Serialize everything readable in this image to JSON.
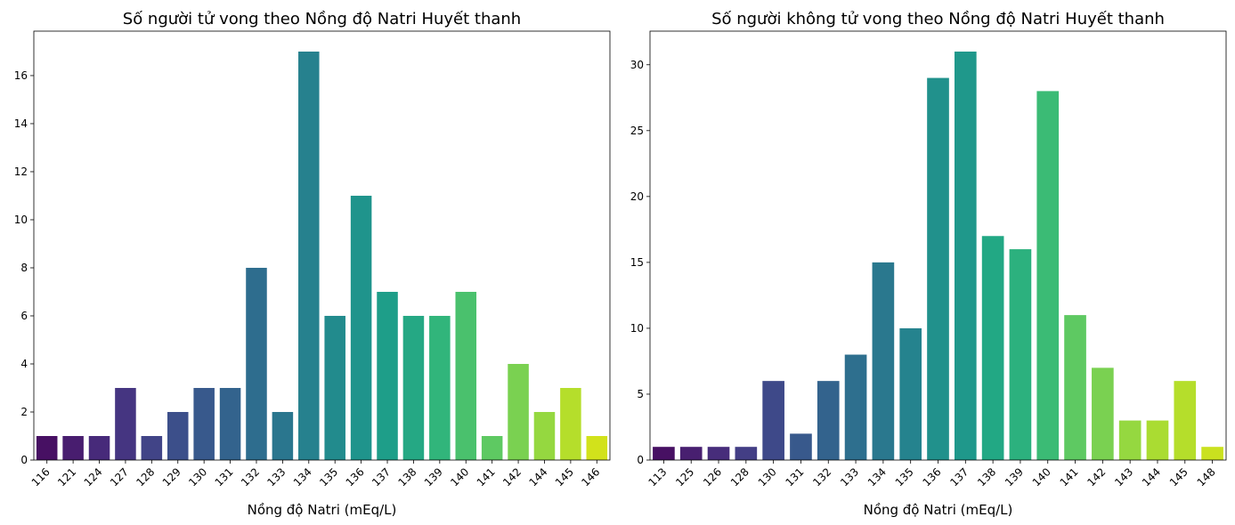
{
  "chart_data": [
    {
      "type": "bar",
      "title": "Số người tử vong theo Nồng độ Natri Huyết thanh",
      "xlabel": "Nồng độ Natri (mEq/L)",
      "ylabel": "",
      "ylim": [
        0,
        17.85
      ],
      "yticks": [
        0,
        2,
        4,
        6,
        8,
        10,
        12,
        14,
        16
      ],
      "categories": [
        "116",
        "121",
        "124",
        "127",
        "128",
        "129",
        "130",
        "131",
        "132",
        "133",
        "134",
        "135",
        "136",
        "137",
        "138",
        "139",
        "140",
        "141",
        "142",
        "144",
        "145",
        "146"
      ],
      "values": [
        1,
        1,
        1,
        3,
        1,
        2,
        3,
        3,
        8,
        2,
        17,
        6,
        11,
        7,
        6,
        6,
        7,
        1,
        4,
        2,
        3,
        1
      ],
      "palette": "viridis",
      "grid": false,
      "colors": [
        "#471063",
        "#481d6f",
        "#472a7a",
        "#453581",
        "#414487",
        "#3c4f8a",
        "#38598c",
        "#33638d",
        "#2e6d8e",
        "#2a768e",
        "#26818e",
        "#228b8d",
        "#1f948c",
        "#1e9e89",
        "#25a884",
        "#31b57b",
        "#4ac16d",
        "#5ec962",
        "#7ad151",
        "#95d840",
        "#b5de2b",
        "#d2e21b"
      ]
    },
    {
      "type": "bar",
      "title": "Số người không tử vong theo Nồng độ Natri Huyết thanh",
      "xlabel": "Nồng độ Natri (mEq/L)",
      "ylabel": "",
      "ylim": [
        0,
        32.55
      ],
      "yticks": [
        0,
        5,
        10,
        15,
        20,
        25,
        30
      ],
      "categories": [
        "113",
        "125",
        "126",
        "128",
        "130",
        "131",
        "132",
        "133",
        "134",
        "135",
        "136",
        "137",
        "138",
        "139",
        "140",
        "141",
        "142",
        "143",
        "144",
        "145",
        "148"
      ],
      "values": [
        1,
        1,
        1,
        1,
        6,
        2,
        6,
        8,
        15,
        10,
        29,
        31,
        17,
        16,
        28,
        11,
        7,
        3,
        3,
        6,
        1
      ],
      "palette": "viridis",
      "grid": false,
      "colors": [
        "#471063",
        "#481f70",
        "#472d7b",
        "#433e85",
        "#3e4989",
        "#38598c",
        "#33638d",
        "#2e6f8e",
        "#2a788e",
        "#25838e",
        "#21918c",
        "#1f988b",
        "#22a884",
        "#2cb17e",
        "#3bbb75",
        "#5ec962",
        "#7ad151",
        "#95d840",
        "#aadc32",
        "#b5de2b",
        "#cae11f"
      ]
    }
  ]
}
